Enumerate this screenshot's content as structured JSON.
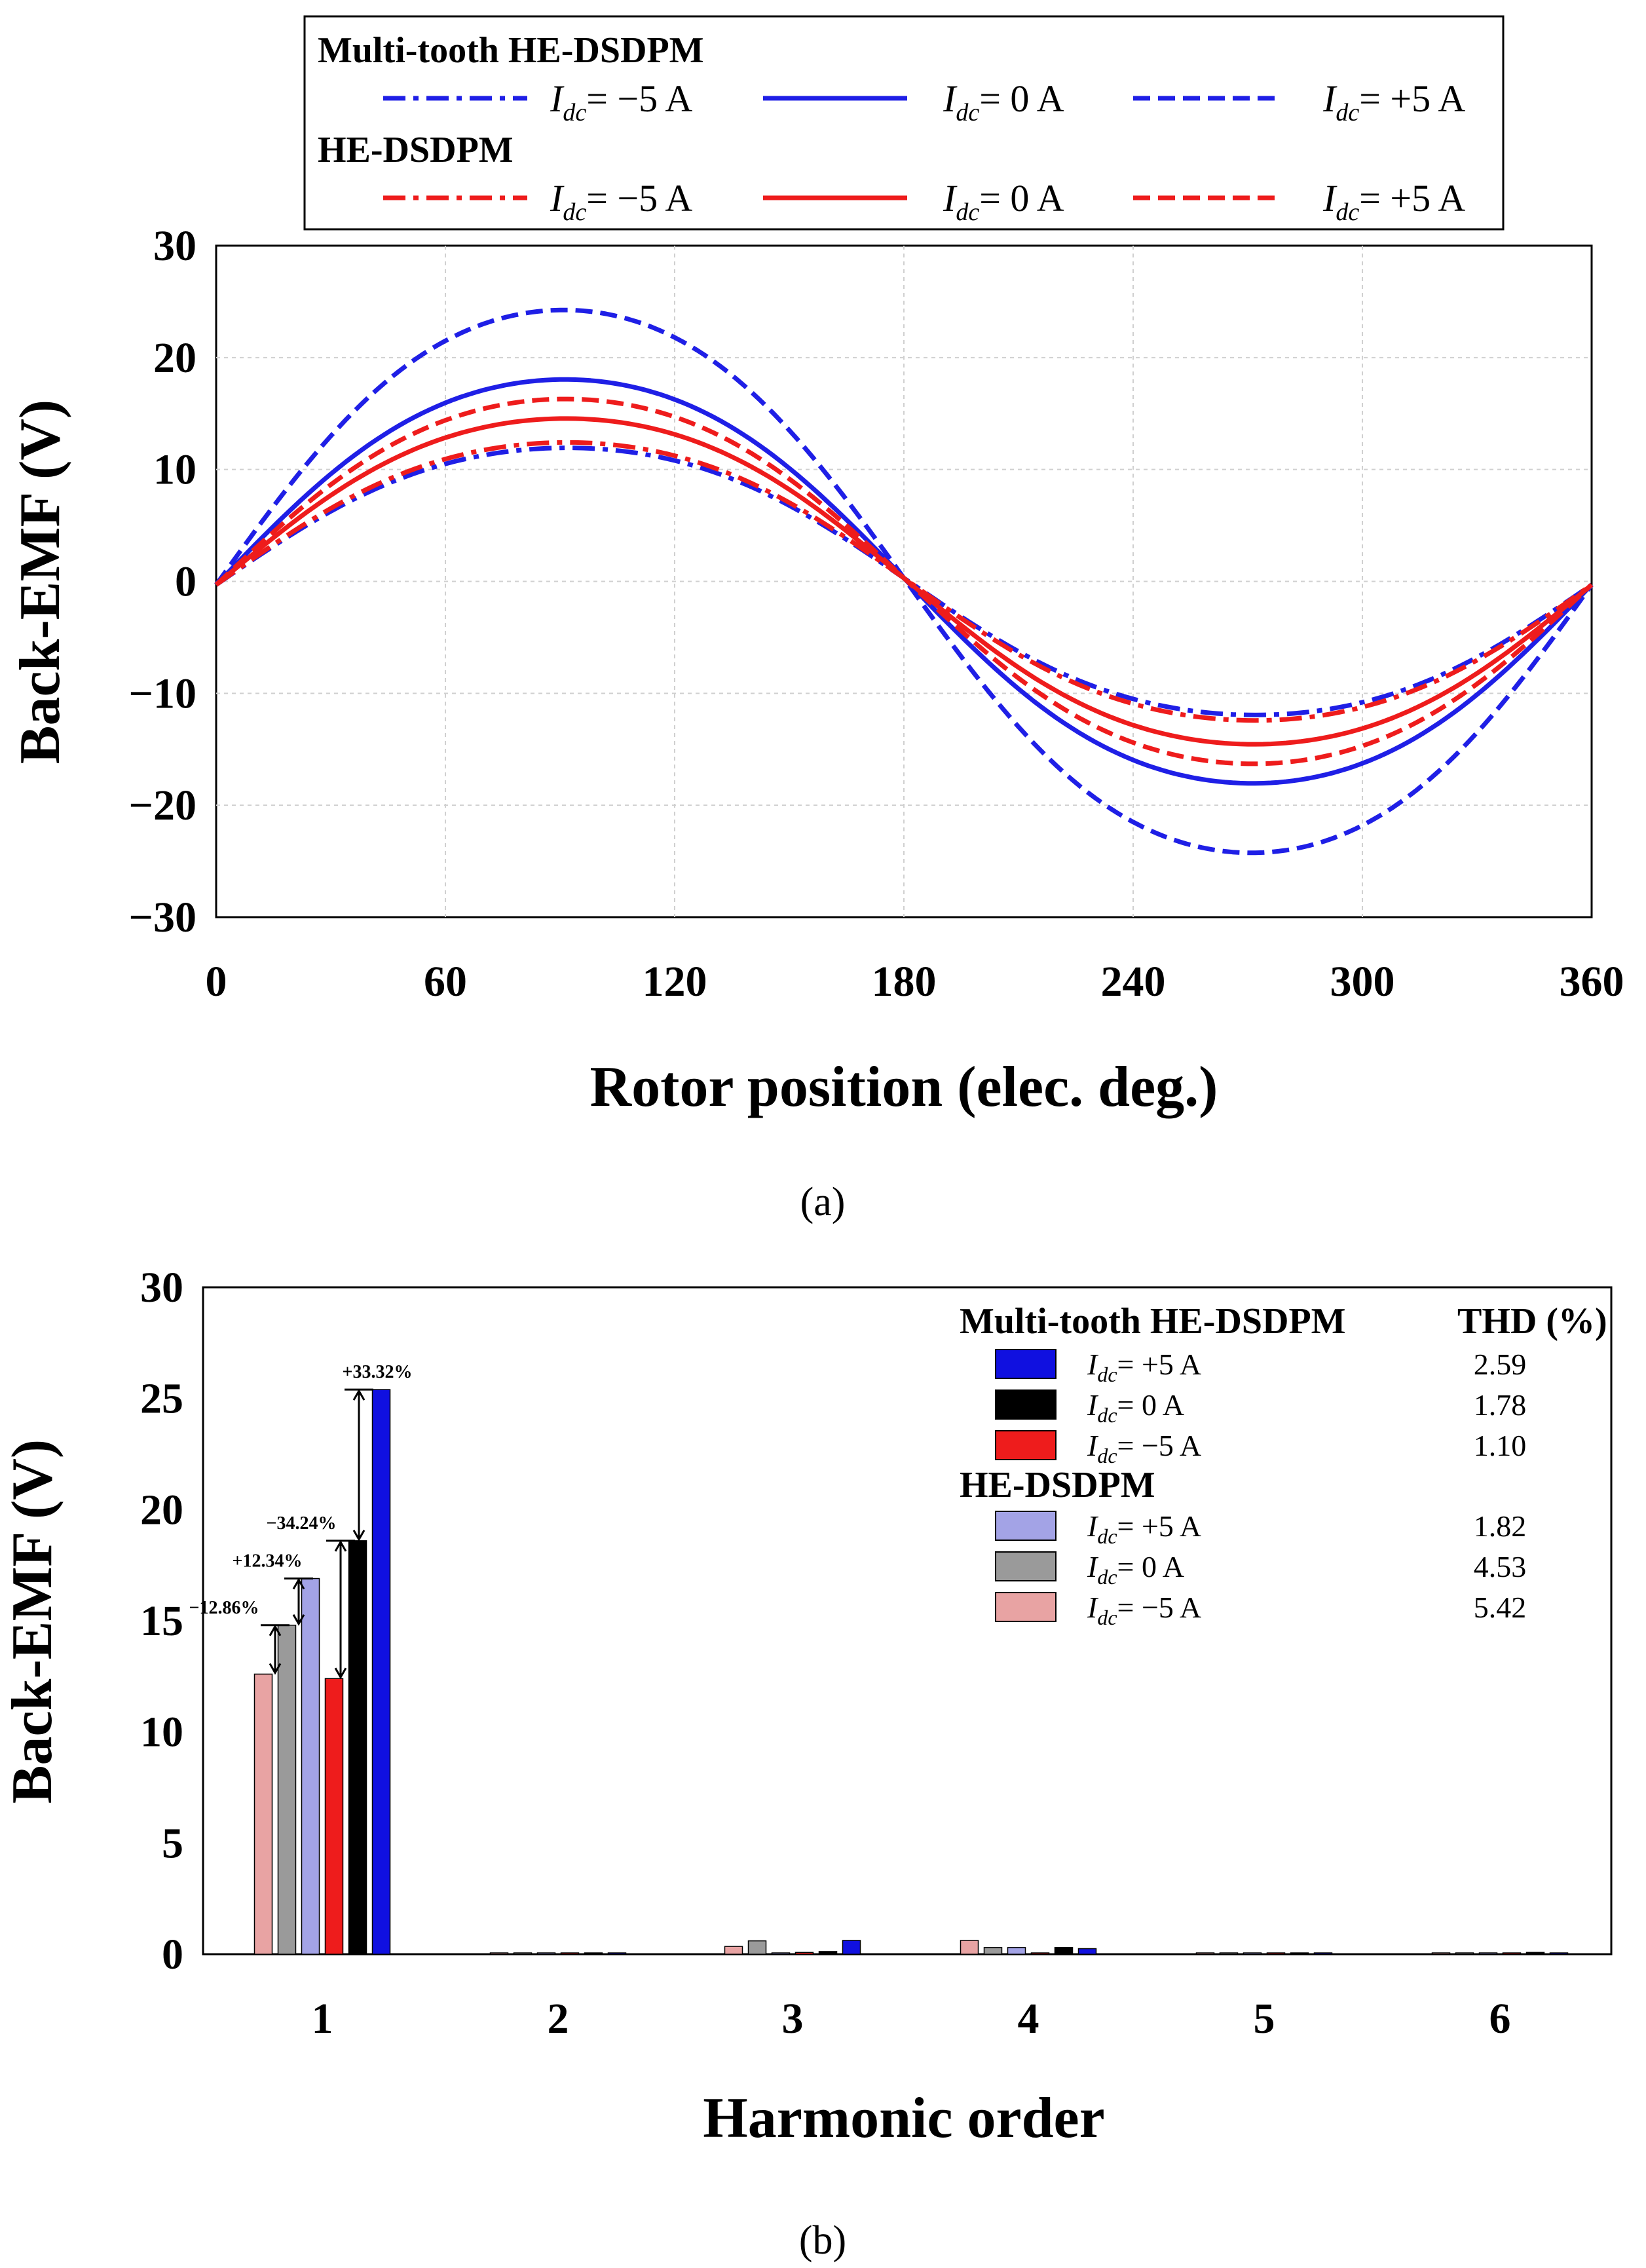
{
  "chart_data": [
    {
      "type": "line",
      "panel_label": "(a)",
      "xlabel": "Rotor position (elec. deg.)",
      "ylabel": "Back-EMF (V)",
      "xlim": [
        0,
        360
      ],
      "ylim": [
        -30,
        30
      ],
      "xticks": [
        "0",
        "60",
        "120",
        "180",
        "240",
        "300",
        "360"
      ],
      "yticks": [
        "30",
        "20",
        "10",
        "0",
        "−10",
        "−20",
        "−30"
      ],
      "grid": true,
      "legend": {
        "groups": [
          {
            "title": "Multi-tooth HE-DSDPM",
            "entries": [
              {
                "prefix": "I",
                "sub": "dc",
                "rest": "= −5 A"
              },
              {
                "prefix": "I",
                "sub": "dc",
                "rest": "= 0 A"
              },
              {
                "prefix": "I",
                "sub": "dc",
                "rest": "= +5 A"
              }
            ]
          },
          {
            "title": "HE-DSDPM",
            "entries": [
              {
                "prefix": "I",
                "sub": "dc",
                "rest": "= −5 A"
              },
              {
                "prefix": "I",
                "sub": "dc",
                "rest": "= 0 A"
              },
              {
                "prefix": "I",
                "sub": "dc",
                "rest": "= +5 A"
              }
            ]
          }
        ]
      },
      "series": [
        {
          "name": "Multi-tooth HE-DSDPM Idc=-5 A",
          "color": "#1f1fe6",
          "dash": "dashdot",
          "amplitude": 12.3
        },
        {
          "name": "Multi-tooth HE-DSDPM Idc=0 A",
          "color": "#1f1fe6",
          "dash": "solid",
          "amplitude": 18.6
        },
        {
          "name": "Multi-tooth HE-DSDPM Idc=+5 A",
          "color": "#1f1fe6",
          "dash": "dashed",
          "amplitude": 25.0
        },
        {
          "name": "HE-DSDPM Idc=-5 A",
          "color": "#ee1c1c",
          "dash": "dashdot",
          "amplitude": 12.8
        },
        {
          "name": "HE-DSDPM Idc=0 A",
          "color": "#ee1c1c",
          "dash": "solid",
          "amplitude": 15.0
        },
        {
          "name": "HE-DSDPM Idc=+5 A",
          "color": "#ee1c1c",
          "dash": "dashed",
          "amplitude": 16.8
        }
      ]
    },
    {
      "type": "bar",
      "panel_label": "(b)",
      "xlabel": "Harmonic order",
      "ylabel": "Back-EMF (V)",
      "categories": [
        "1",
        "2",
        "3",
        "4",
        "5",
        "6"
      ],
      "ylim": [
        0,
        30
      ],
      "yticks": [
        "30",
        "25",
        "20",
        "15",
        "10",
        "5",
        "0"
      ],
      "grid": false,
      "series": [
        {
          "name": "HE-DSDPM Idc=-5 A",
          "color": "#e8a3a3",
          "values": [
            12.6,
            0.02,
            0.35,
            0.62,
            0.02,
            0.02
          ]
        },
        {
          "name": "HE-DSDPM Idc=0 A",
          "color": "#9a9a9a",
          "values": [
            14.8,
            0.03,
            0.6,
            0.3,
            0.03,
            0.03
          ]
        },
        {
          "name": "HE-DSDPM Idc=+5 A",
          "color": "#a3a3e6",
          "values": [
            16.9,
            0.03,
            0.05,
            0.3,
            0.02,
            0.03
          ]
        },
        {
          "name": "Multi-tooth HE-DSDPM Idc=-5 A",
          "color": "#ee1c1c",
          "values": [
            12.4,
            0.02,
            0.08,
            0.05,
            0.02,
            0.02
          ]
        },
        {
          "name": "Multi-tooth HE-DSDPM Idc=0 A",
          "color": "#000000",
          "values": [
            18.6,
            0.03,
            0.12,
            0.3,
            0.03,
            0.08
          ]
        },
        {
          "name": "Multi-tooth HE-DSDPM Idc=+5 A",
          "color": "#1010e0",
          "values": [
            25.4,
            0.02,
            0.62,
            0.25,
            0.02,
            0.03
          ]
        }
      ],
      "annotations": [
        "+33.32%",
        "−34.24%",
        "+12.34%",
        "−12.86%"
      ],
      "legend": {
        "thd_header": "THD (%)",
        "groups": [
          {
            "title": "Multi-tooth HE-DSDPM",
            "entries": [
              {
                "prefix": "I",
                "sub": "dc",
                "rest": "= +5 A",
                "thd": "2.59",
                "color": "#1010e0"
              },
              {
                "prefix": "I",
                "sub": "dc",
                "rest": "= 0 A",
                "thd": "1.78",
                "color": "#000000"
              },
              {
                "prefix": "I",
                "sub": "dc",
                "rest": "= −5 A",
                "thd": "1.10",
                "color": "#ee1c1c"
              }
            ]
          },
          {
            "title": "HE-DSDPM",
            "entries": [
              {
                "prefix": "I",
                "sub": "dc",
                "rest": "= +5 A",
                "thd": "1.82",
                "color": "#a3a3e6"
              },
              {
                "prefix": "I",
                "sub": "dc",
                "rest": "= 0 A",
                "thd": "4.53",
                "color": "#9a9a9a"
              },
              {
                "prefix": "I",
                "sub": "dc",
                "rest": "= −5 A",
                "thd": "5.42",
                "color": "#e8a3a3"
              }
            ]
          }
        ]
      }
    }
  ]
}
